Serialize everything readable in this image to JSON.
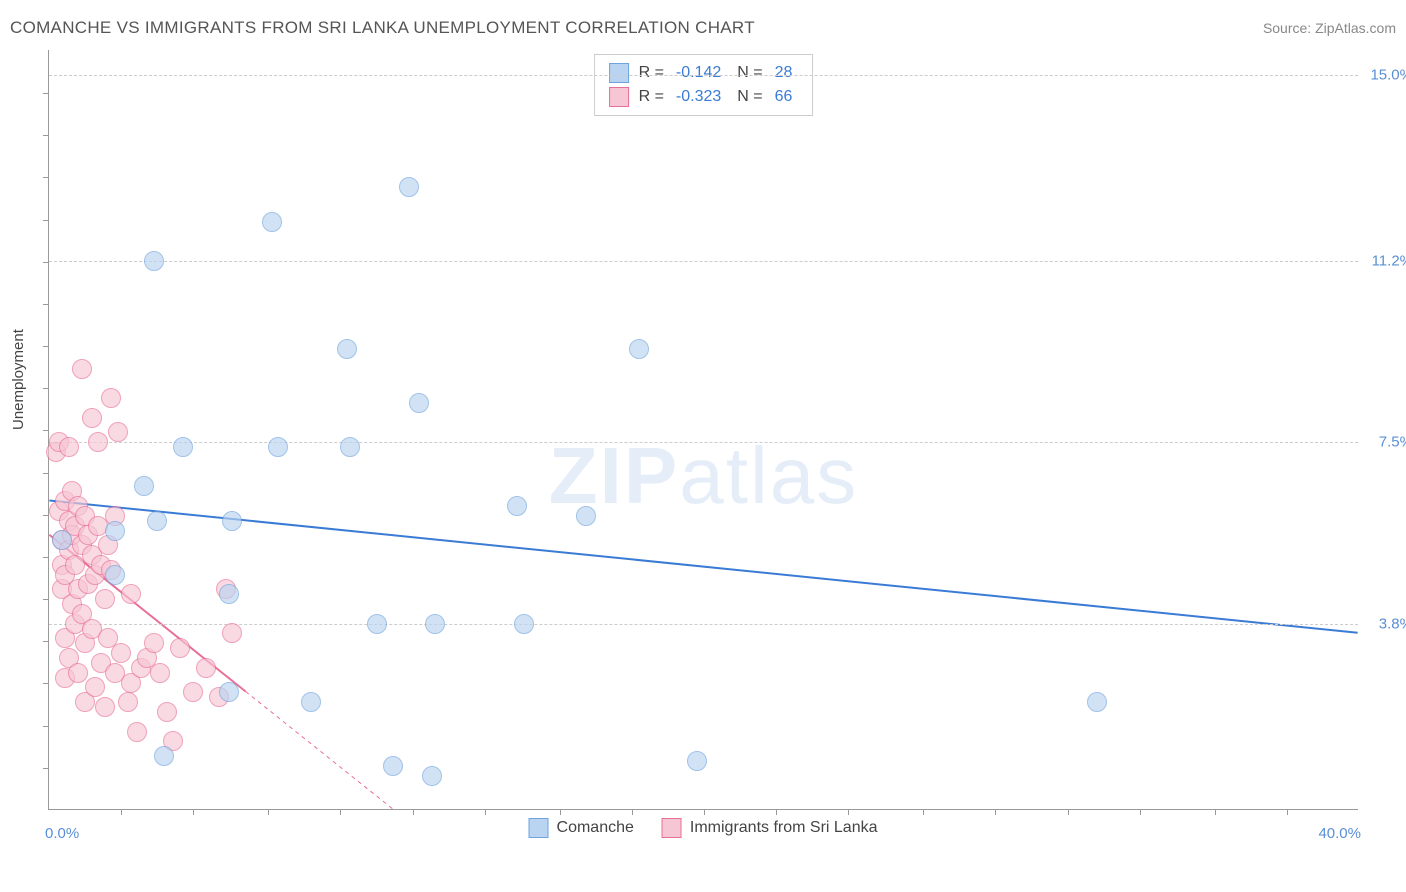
{
  "header": {
    "title": "COMANCHE VS IMMIGRANTS FROM SRI LANKA UNEMPLOYMENT CORRELATION CHART",
    "source": "Source: ZipAtlas.com"
  },
  "y_axis_label": "Unemployment",
  "watermark_zip": "ZIP",
  "watermark_atlas": "atlas",
  "chart": {
    "type": "scatter",
    "xlim": [
      0,
      40
    ],
    "ylim": [
      0,
      15.5
    ],
    "x_origin_label": "0.0%",
    "x_max_label": "40.0%",
    "y_ticks": [
      {
        "value": 3.8,
        "label": "3.8%"
      },
      {
        "value": 7.5,
        "label": "7.5%"
      },
      {
        "value": 11.2,
        "label": "11.2%"
      },
      {
        "value": 15.0,
        "label": "15.0%"
      }
    ],
    "x_tick_positions": [
      2.2,
      4.4,
      6.7,
      8.9,
      11.1,
      13.3,
      15.6,
      17.8,
      20.0,
      22.2,
      24.4,
      26.7,
      28.9,
      31.1,
      33.3,
      35.6,
      37.8
    ],
    "y_tick_positions": [
      0.86,
      1.72,
      2.58,
      3.44,
      4.3,
      5.16,
      6.02,
      6.88,
      7.74,
      8.6,
      9.46,
      10.32,
      11.18,
      12.04,
      12.9,
      13.76,
      14.62
    ],
    "grid_color": "#cccccc",
    "background_color": "#ffffff",
    "axis_color": "#999999",
    "tick_label_color": "#5a8fd6",
    "marker_radius": 10,
    "series": [
      {
        "name": "Comanche",
        "marker_fill": "#b9d4f0",
        "marker_stroke": "#6fa3de",
        "fill_opacity": 0.65,
        "trend_line": {
          "x1": 0,
          "y1": 6.3,
          "x2": 40,
          "y2": 3.6,
          "color": "#3a7bd5",
          "width": 2,
          "dash_after_x": null
        },
        "points": [
          [
            6.8,
            12.0
          ],
          [
            3.2,
            11.2
          ],
          [
            7.0,
            7.4
          ],
          [
            9.1,
            9.4
          ],
          [
            18.0,
            9.4
          ],
          [
            11.0,
            12.7
          ],
          [
            11.3,
            8.3
          ],
          [
            14.3,
            6.2
          ],
          [
            14.5,
            3.8
          ],
          [
            10.0,
            3.8
          ],
          [
            5.5,
            4.4
          ],
          [
            10.5,
            0.9
          ],
          [
            2.9,
            6.6
          ],
          [
            3.3,
            5.9
          ],
          [
            5.6,
            5.9
          ],
          [
            2.0,
            4.8
          ],
          [
            2.0,
            5.7
          ],
          [
            0.4,
            5.5
          ],
          [
            4.1,
            7.4
          ],
          [
            5.5,
            2.4
          ],
          [
            3.5,
            1.1
          ],
          [
            11.7,
            0.7
          ],
          [
            8.0,
            2.2
          ],
          [
            19.8,
            1.0
          ],
          [
            16.4,
            6.0
          ],
          [
            32.0,
            2.2
          ],
          [
            11.8,
            3.8
          ],
          [
            9.2,
            7.4
          ]
        ]
      },
      {
        "name": "Immigrants from Sri Lanka",
        "marker_fill": "#f7c6d4",
        "marker_stroke": "#e86f97",
        "fill_opacity": 0.65,
        "trend_line": {
          "x1": 0,
          "y1": 5.6,
          "x2": 10.5,
          "y2": 0,
          "color": "#e86f97",
          "width": 2,
          "dash_after_x": 6.0
        },
        "points": [
          [
            0.2,
            7.3
          ],
          [
            0.3,
            7.5
          ],
          [
            0.3,
            6.1
          ],
          [
            0.4,
            5.5
          ],
          [
            0.4,
            5.0
          ],
          [
            0.4,
            4.5
          ],
          [
            0.5,
            6.3
          ],
          [
            0.5,
            4.8
          ],
          [
            0.5,
            3.5
          ],
          [
            0.5,
            2.7
          ],
          [
            0.6,
            7.4
          ],
          [
            0.6,
            5.9
          ],
          [
            0.6,
            5.3
          ],
          [
            0.6,
            3.1
          ],
          [
            0.7,
            6.5
          ],
          [
            0.7,
            5.6
          ],
          [
            0.7,
            4.2
          ],
          [
            0.8,
            5.8
          ],
          [
            0.8,
            5.0
          ],
          [
            0.8,
            3.8
          ],
          [
            0.9,
            6.2
          ],
          [
            0.9,
            4.5
          ],
          [
            0.9,
            2.8
          ],
          [
            1.0,
            5.4
          ],
          [
            1.0,
            4.0
          ],
          [
            1.0,
            9.0
          ],
          [
            1.1,
            6.0
          ],
          [
            1.1,
            3.4
          ],
          [
            1.1,
            2.2
          ],
          [
            1.2,
            5.6
          ],
          [
            1.2,
            4.6
          ],
          [
            1.3,
            8.0
          ],
          [
            1.3,
            5.2
          ],
          [
            1.3,
            3.7
          ],
          [
            1.4,
            4.8
          ],
          [
            1.4,
            2.5
          ],
          [
            1.5,
            5.8
          ],
          [
            1.5,
            7.5
          ],
          [
            1.6,
            3.0
          ],
          [
            1.6,
            5.0
          ],
          [
            1.7,
            4.3
          ],
          [
            1.7,
            2.1
          ],
          [
            1.8,
            5.4
          ],
          [
            1.8,
            3.5
          ],
          [
            1.9,
            8.4
          ],
          [
            1.9,
            4.9
          ],
          [
            2.0,
            2.8
          ],
          [
            2.0,
            6.0
          ],
          [
            2.1,
            7.7
          ],
          [
            2.2,
            3.2
          ],
          [
            2.4,
            2.2
          ],
          [
            2.5,
            2.6
          ],
          [
            2.5,
            4.4
          ],
          [
            2.7,
            1.6
          ],
          [
            2.8,
            2.9
          ],
          [
            3.0,
            3.1
          ],
          [
            3.2,
            3.4
          ],
          [
            3.4,
            2.8
          ],
          [
            3.6,
            2.0
          ],
          [
            3.8,
            1.4
          ],
          [
            4.0,
            3.3
          ],
          [
            4.4,
            2.4
          ],
          [
            4.8,
            2.9
          ],
          [
            5.2,
            2.3
          ],
          [
            5.4,
            4.5
          ],
          [
            5.6,
            3.6
          ]
        ]
      }
    ]
  },
  "legend_top": [
    {
      "swatch_fill": "#b9d4f0",
      "swatch_stroke": "#6fa3de",
      "r": "-0.142",
      "n": "28"
    },
    {
      "swatch_fill": "#f7c6d4",
      "swatch_stroke": "#e86f97",
      "r": "-0.323",
      "n": "66"
    }
  ],
  "legend_bottom": [
    {
      "swatch_fill": "#b9d4f0",
      "swatch_stroke": "#6fa3de",
      "label": "Comanche"
    },
    {
      "swatch_fill": "#f7c6d4",
      "swatch_stroke": "#e86f97",
      "label": "Immigrants from Sri Lanka"
    }
  ],
  "labels": {
    "r_eq": "R =",
    "n_eq": "N ="
  }
}
